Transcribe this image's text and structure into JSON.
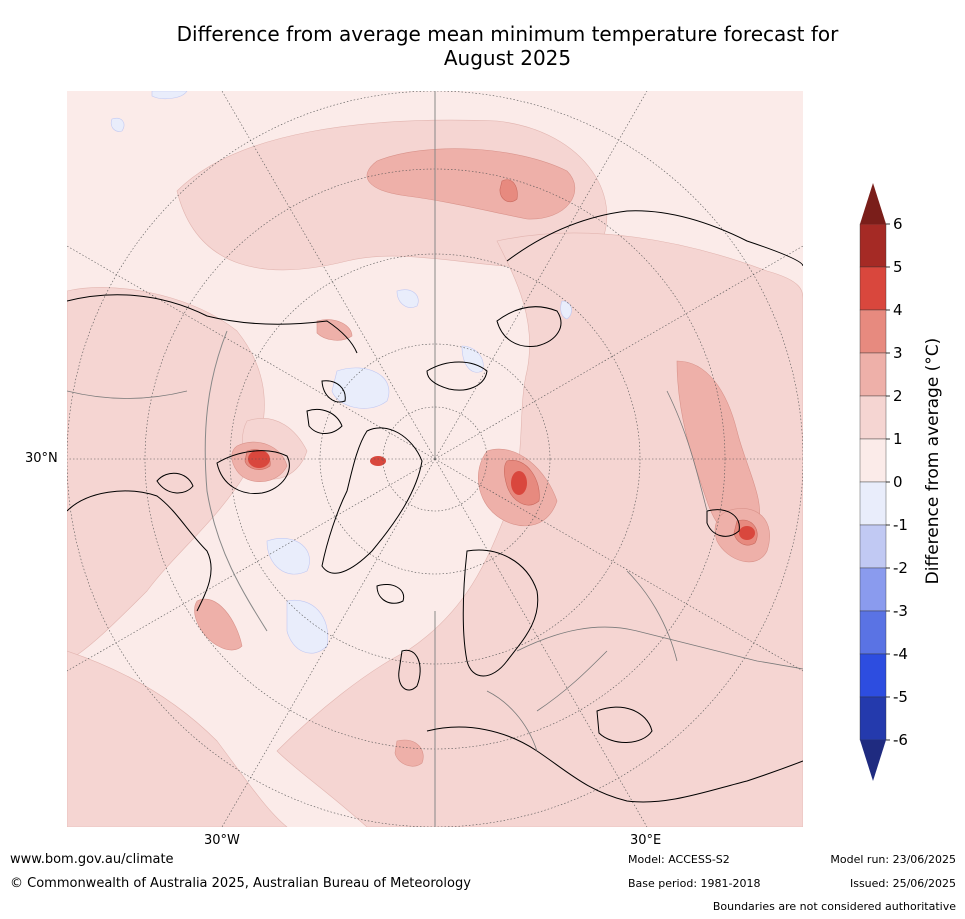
{
  "title_line1": "Difference from average mean minimum temperature forecast for",
  "title_line2": "August 2025",
  "map": {
    "projection": "north-polar-stereographic",
    "lat_labels": [
      "30°N"
    ],
    "lon_labels": [
      "30°W",
      "30°E"
    ]
  },
  "colorbar": {
    "label": "Difference from average (°C)",
    "ticks": [
      "6",
      "5",
      "4",
      "3",
      "2",
      "1",
      "0",
      "-1",
      "-2",
      "-3",
      "-4",
      "-5",
      "-6"
    ],
    "levels_top_to_bottom": [
      "#a52a25",
      "#d9473d",
      "#e78a7f",
      "#eeb0a9",
      "#f5d5d2",
      "#fbebe9",
      "#e9edfb",
      "#c1c9f3",
      "#8a9bee",
      "#5a73e4",
      "#2d4de0",
      "#243aad"
    ],
    "extend_top": "#7a1e1a",
    "extend_bottom": "#1f2b80"
  },
  "footer": {
    "website": "www.bom.gov.au/climate",
    "copyright": "© Commonwealth of Australia 2025, Australian Bureau of Meteorology",
    "model": "Model: ACCESS-S2",
    "base_period": "Base period: 1981-2018",
    "model_run": "Model run: 23/06/2025",
    "issued": "Issued: 25/06/2025",
    "disclaimer": "Boundaries are not considered authoritative"
  }
}
